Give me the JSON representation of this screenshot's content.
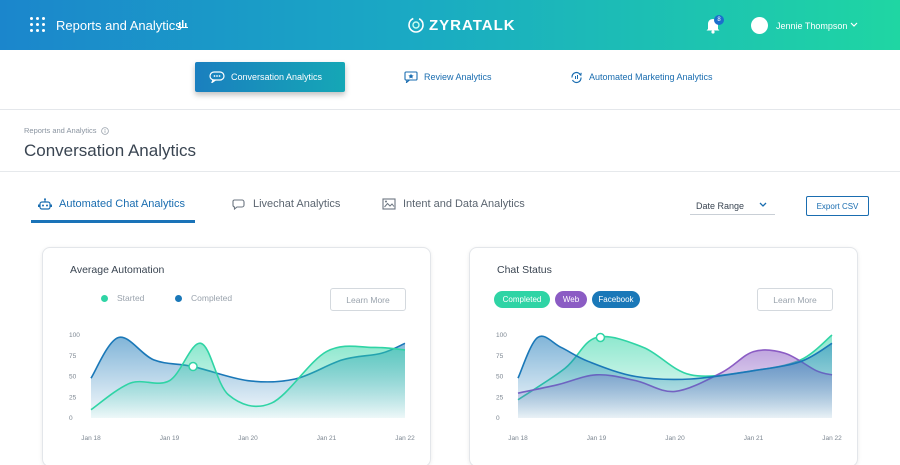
{
  "header": {
    "app_title": "Reports and Analytics",
    "brand": "ZYRATALK",
    "notification_count": "8",
    "user_name": "Jennie Thompson",
    "gradient": [
      "#1b86cc",
      "#1fd6a3"
    ]
  },
  "module_tabs": [
    {
      "label": "Conversation Analytics",
      "icon": "chat-bubble-icon",
      "active": true
    },
    {
      "label": "Review Analytics",
      "icon": "review-star-icon",
      "active": false
    },
    {
      "label": "Automated Marketing Analytics",
      "icon": "marketing-cycle-icon",
      "active": false
    }
  ],
  "breadcrumb": "Reports and Analytics",
  "page_title": "Conversation Analytics",
  "sub_tabs": [
    {
      "label": "Automated Chat Analytics",
      "icon": "robot-icon",
      "active": true
    },
    {
      "label": "Livechat Analytics",
      "icon": "chat-icon",
      "active": false
    },
    {
      "label": "Intent and Data Analytics",
      "icon": "data-image-icon",
      "active": false
    }
  ],
  "date_range": "Date Range",
  "export_label": "Export CSV",
  "colors": {
    "teal": "#2fd4a5",
    "blue": "#1a78b8",
    "purple": "#8b5cc4"
  },
  "chart_data": [
    {
      "type": "area",
      "title": "Average Automation",
      "learn_more": "Learn More",
      "x": [
        "Jan 18",
        "Jan 19",
        "Jan 20",
        "Jan 21",
        "Jan 22"
      ],
      "yticks": [
        0,
        25,
        50,
        75,
        100
      ],
      "ylim": [
        0,
        100
      ],
      "legend_placement": "top-left",
      "series": [
        {
          "name": "Started",
          "color": "#2fd4a5",
          "points": [
            [
              0,
              10
            ],
            [
              0.5,
              42
            ],
            [
              1,
              45
            ],
            [
              1.4,
              90
            ],
            [
              1.75,
              28
            ],
            [
              2.3,
              18
            ],
            [
              3,
              80
            ],
            [
              3.6,
              85
            ],
            [
              4,
              82
            ]
          ]
        },
        {
          "name": "Completed",
          "color": "#1a78b8",
          "points": [
            [
              0,
              48
            ],
            [
              0.35,
              97
            ],
            [
              0.8,
              70
            ],
            [
              1.3,
              62
            ],
            [
              2,
              45
            ],
            [
              2.6,
              47
            ],
            [
              3.2,
              70
            ],
            [
              3.7,
              78
            ],
            [
              4,
              90
            ]
          ]
        }
      ],
      "highlight": {
        "x": 1.3,
        "y": 62
      }
    },
    {
      "type": "area",
      "title": "Chat Status",
      "learn_more": "Learn More",
      "pills": [
        {
          "label": "Completed",
          "color": "#2fd4a5"
        },
        {
          "label": "Web",
          "color": "#8b5cc4"
        },
        {
          "label": "Facebook",
          "color": "#1a78b8"
        }
      ],
      "x": [
        "Jan 18",
        "Jan 19",
        "Jan 20",
        "Jan 21",
        "Jan 22"
      ],
      "yticks": [
        0,
        25,
        50,
        75,
        100
      ],
      "ylim": [
        0,
        100
      ],
      "series": [
        {
          "name": "Completed",
          "color": "#2fd4a5",
          "points": [
            [
              0,
              22
            ],
            [
              0.6,
              60
            ],
            [
              1,
              97
            ],
            [
              1.6,
              85
            ],
            [
              2.2,
              52
            ],
            [
              3,
              57
            ],
            [
              3.6,
              70
            ],
            [
              4,
              100
            ]
          ]
        },
        {
          "name": "Web",
          "color": "#8b5cc4",
          "points": [
            [
              0,
              30
            ],
            [
              0.5,
              40
            ],
            [
              1,
              52
            ],
            [
              1.5,
              45
            ],
            [
              2,
              32
            ],
            [
              2.6,
              55
            ],
            [
              3,
              80
            ],
            [
              3.4,
              78
            ],
            [
              3.8,
              57
            ],
            [
              4,
              52
            ]
          ]
        },
        {
          "name": "Facebook",
          "color": "#1a78b8",
          "points": [
            [
              0,
              48
            ],
            [
              0.25,
              97
            ],
            [
              0.55,
              85
            ],
            [
              0.9,
              68
            ],
            [
              1.5,
              50
            ],
            [
              2.2,
              47
            ],
            [
              3,
              57
            ],
            [
              3.6,
              68
            ],
            [
              4,
              90
            ]
          ]
        }
      ],
      "highlight": {
        "x": 1.05,
        "y": 97
      }
    }
  ]
}
